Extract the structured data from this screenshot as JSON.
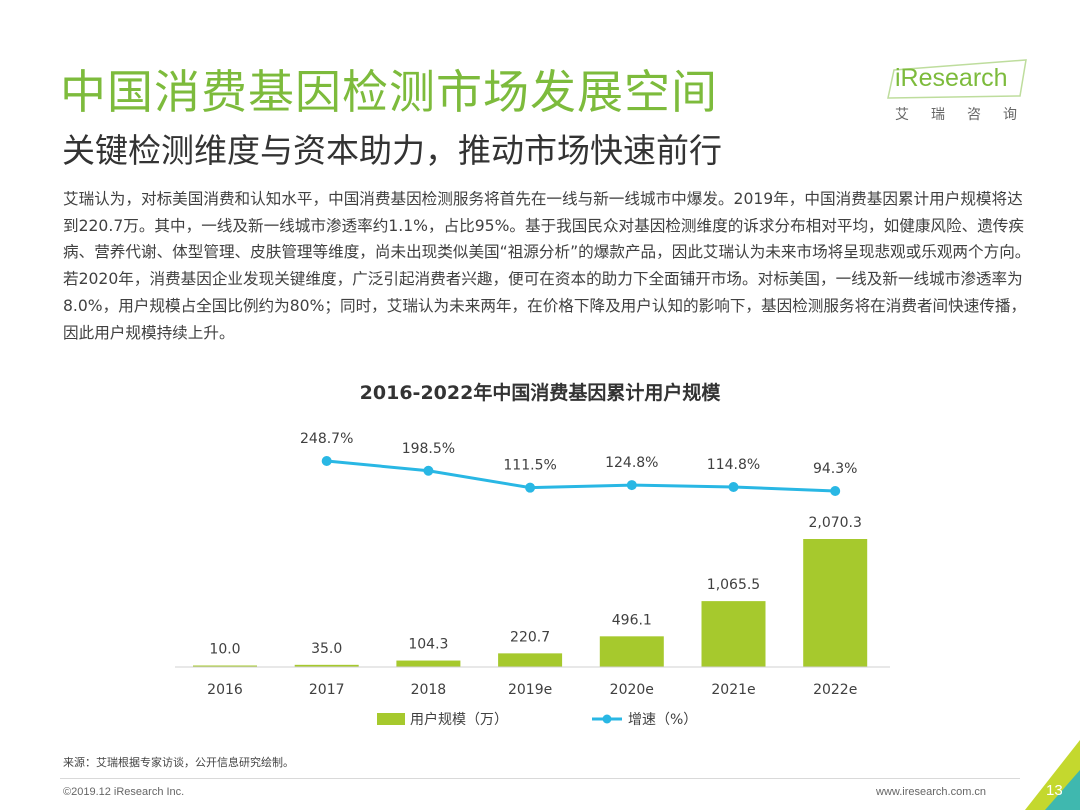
{
  "header": {
    "title": "中国消费基因检测市场发展空间",
    "subtitle": "关键检测维度与资本助力，推动市场快速前行"
  },
  "logo": {
    "brand": "iResearch",
    "cn": "艾瑞咨询"
  },
  "body_text": "艾瑞认为，对标美国消费和认知水平，中国消费基因检测服务将首先在一线与新一线城市中爆发。2019年，中国消费基因累计用户规模将达到220.7万。其中，一线及新一线城市渗透率约1.1%，占比95%。基于我国民众对基因检测维度的诉求分布相对平均，如健康风险、遗传疾病、营养代谢、体型管理、皮肤管理等维度，尚未出现类似美国“祖源分析”的爆款产品，因此艾瑞认为未来市场将呈现悲观或乐观两个方向。若2020年，消费基因企业发现关键维度，广泛引起消费者兴趣，便可在资本的助力下全面铺开市场。对标美国，一线及新一线城市渗透率为8.0%，用户规模占全国比例约为80%；同时，艾瑞认为未来两年，在价格下降及用户认知的影响下，基因检测服务将在消费者间快速传播，因此用户规模持续上升。",
  "chart_data": {
    "type": "bar",
    "title": "2016-2022年中国消费基因累计用户规模",
    "categories": [
      "2016",
      "2017",
      "2018",
      "2019e",
      "2020e",
      "2021e",
      "2022e"
    ],
    "series": [
      {
        "name": "用户规模（万）",
        "type": "bar",
        "color": "#a6c92d",
        "values": [
          10.0,
          35.0,
          104.3,
          220.7,
          496.1,
          1065.5,
          2070.3
        ],
        "labels": [
          "10.0",
          "35.0",
          "104.3",
          "220.7",
          "496.1",
          "1,065.5",
          "2,070.3"
        ]
      },
      {
        "name": "增速（%）",
        "type": "line",
        "color": "#29b7e4",
        "values": [
          null,
          248.7,
          198.5,
          111.5,
          124.8,
          114.8,
          94.3
        ],
        "labels": [
          "",
          "248.7%",
          "198.5%",
          "111.5%",
          "124.8%",
          "114.8%",
          "94.3%"
        ]
      }
    ],
    "legend_position": "bottom",
    "grid": false
  },
  "footer": {
    "source": "来源：艾瑞根据专家访谈，公开信息研究绘制。",
    "copyright": "©2019.12 iResearch Inc.",
    "website": "www.iresearch.com.cn",
    "page": "13"
  },
  "colors": {
    "accent": "#7dbb3c",
    "bar": "#a6c92d",
    "line": "#29b7e4"
  }
}
